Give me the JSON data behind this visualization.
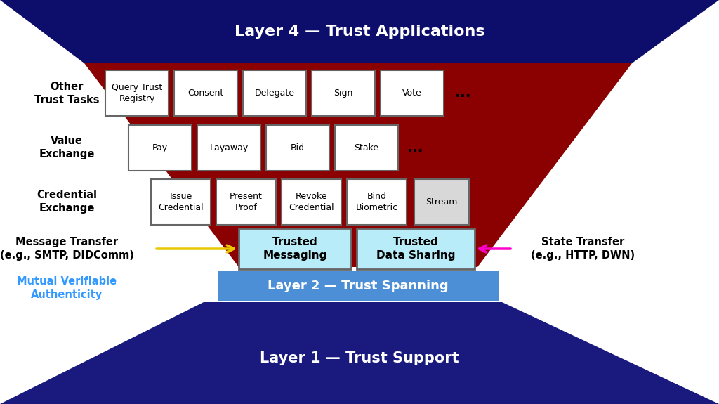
{
  "title_layer4": "Layer 4 — Trust Applications",
  "title_layer2": "Layer 2 — Trust Spanning",
  "title_layer1": "Layer 1 — Trust Support",
  "color_layer4_bg": "#0d0d6b",
  "color_layer3_bg": "#8b0000",
  "color_layer2_bg": "#4d8fd6",
  "color_layer1_bg": "#1a1a7e",
  "color_box_fill": "#ffffff",
  "color_box_border": "#666666",
  "color_trusted_fill": "#b8ecf8",
  "color_stream_fill": "#d8d8d8",
  "color_text_white": "#ffffff",
  "color_text_black": "#000000",
  "color_text_blue": "#3399ff",
  "color_arrow_yellow": "#e8c800",
  "color_arrow_magenta": "#ff00cc",
  "row1_labels": [
    "Query Trust\nRegistry",
    "Consent",
    "Delegate",
    "Sign",
    "Vote"
  ],
  "row2_labels": [
    "Pay",
    "Layaway",
    "Bid",
    "Stake"
  ],
  "row3_labels": [
    "Issue\nCredential",
    "Present\nProof",
    "Revoke\nCredential",
    "Bind\nBiometric",
    "Stream"
  ]
}
